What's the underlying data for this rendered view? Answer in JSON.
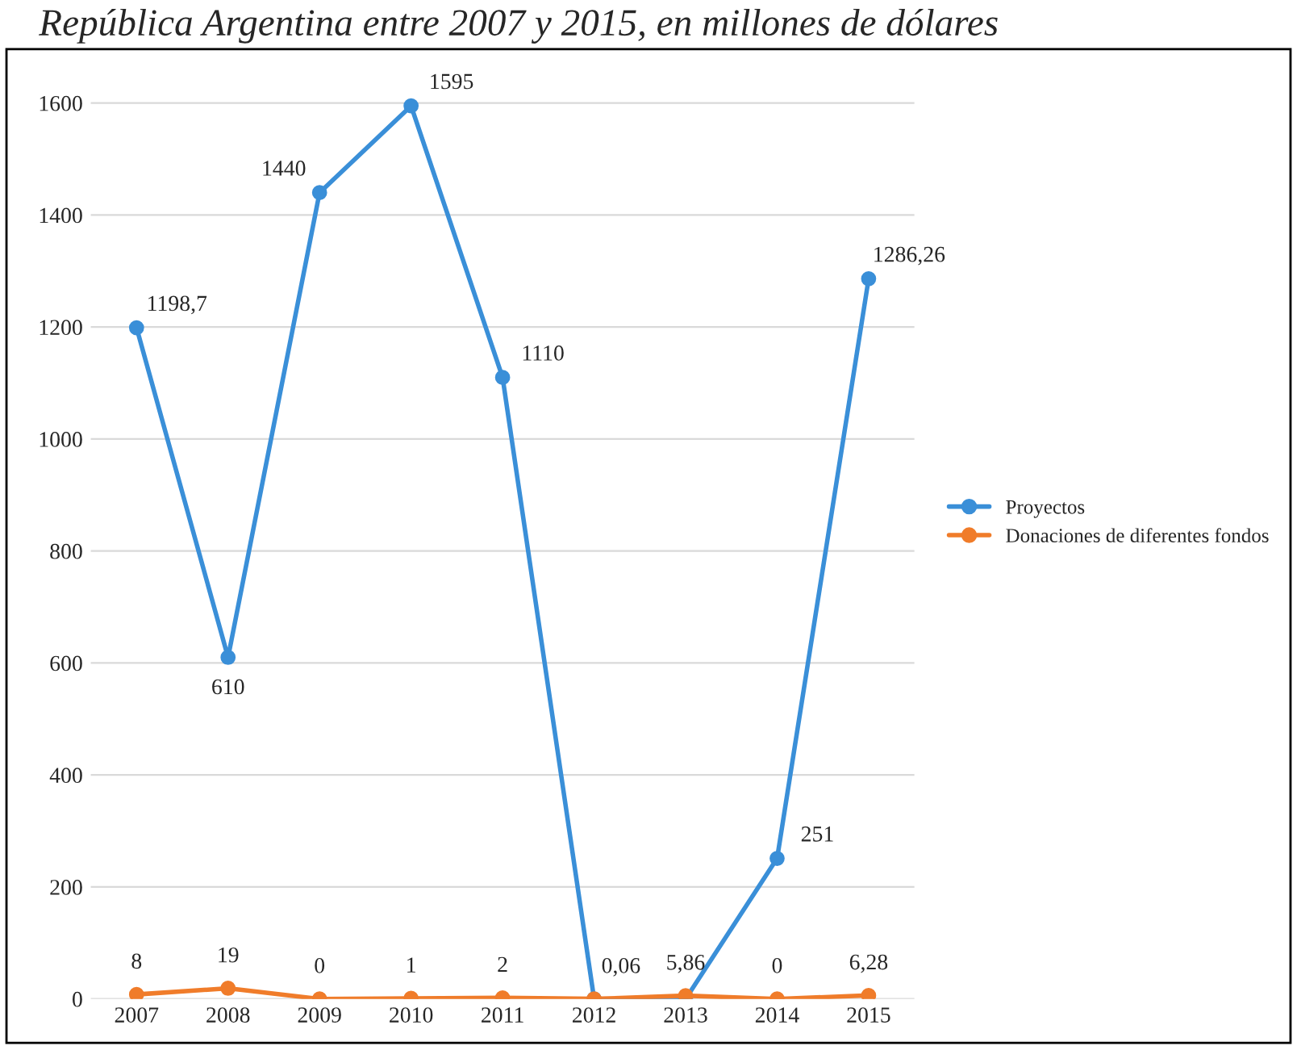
{
  "chart_data": {
    "type": "line",
    "title": "República Argentina entre 2007 y 2015, en millones de dólares",
    "categories": [
      "2007",
      "2008",
      "2009",
      "2010",
      "2011",
      "2012",
      "2013",
      "2014",
      "2015"
    ],
    "series": [
      {
        "name": "Proyectos",
        "color": "#3a8fd8",
        "values": [
          1198.7,
          610,
          1440,
          1595,
          1110,
          0,
          0,
          251,
          1286.26
        ],
        "value_labels": [
          "1198,7",
          "610",
          "1440",
          "1595",
          "1110",
          null,
          null,
          "251",
          "1286,26"
        ]
      },
      {
        "name": "Donaciones de diferentes fondos",
        "color": "#f07c2a",
        "values": [
          8,
          19,
          0,
          1,
          2,
          0.06,
          5.86,
          0,
          6.28
        ],
        "value_labels": [
          "8",
          "19",
          "0",
          "1",
          "2",
          "0,06",
          "5,86",
          "0",
          "6,28"
        ]
      }
    ],
    "ylim": [
      0,
      1700
    ],
    "yticks": [
      0,
      200,
      400,
      600,
      800,
      1000,
      1200,
      1400,
      1600
    ],
    "grid": "y",
    "legend": "right",
    "marker": "circle",
    "line_style": "solid"
  }
}
